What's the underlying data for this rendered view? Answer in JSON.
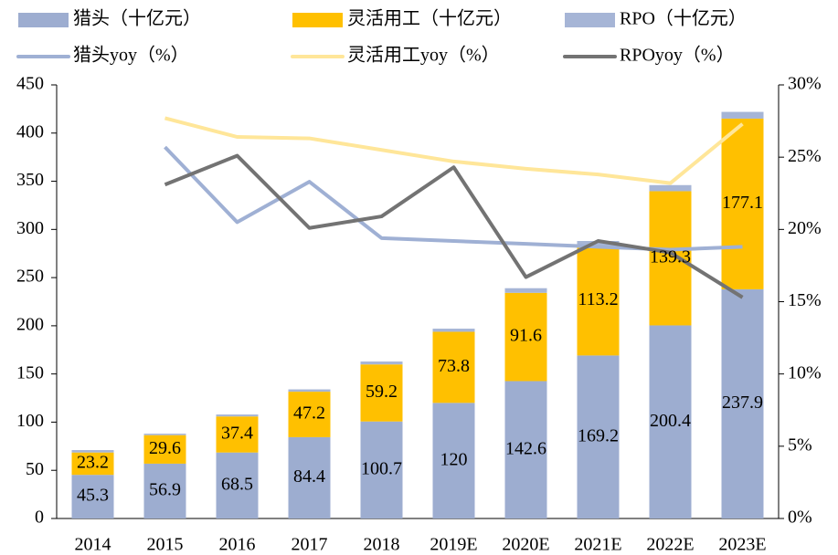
{
  "chart_data": {
    "type": "bar",
    "stacked": true,
    "categories": [
      "2014",
      "2015",
      "2016",
      "2017",
      "2018",
      "2019E",
      "2020E",
      "2021E",
      "2022E",
      "2023E"
    ],
    "series": [
      {
        "name": "猎头（十亿元）",
        "type": "bar",
        "color": "#9dadd0",
        "data_labels": true,
        "values": [
          45.3,
          56.9,
          68.5,
          84.4,
          100.7,
          120,
          142.6,
          169.2,
          200.4,
          237.9
        ]
      },
      {
        "name": "灵活用工（十亿元）",
        "type": "bar",
        "color": "#ffc000",
        "data_labels": true,
        "values": [
          23.2,
          29.6,
          37.4,
          47.2,
          59.2,
          73.8,
          91.6,
          113.2,
          139.3,
          177.1
        ]
      },
      {
        "name": "RPO（十亿元）",
        "type": "bar",
        "color": "#a6b5d6",
        "data_labels": false,
        "values": [
          2.5,
          1.5,
          2,
          2.4,
          3,
          3.2,
          4.8,
          5.6,
          6.3,
          7
        ]
      },
      {
        "name": "猎头yoy（%）",
        "type": "line",
        "axis": "y2",
        "color": "#9fb0d4",
        "values": [
          null,
          25.7,
          20.5,
          23.3,
          19.4,
          19.2,
          19.0,
          18.8,
          18.6,
          18.8
        ]
      },
      {
        "name": "灵活用工yoy（%）",
        "type": "line",
        "axis": "y2",
        "color": "#ffe699",
        "values": [
          null,
          27.7,
          26.4,
          26.3,
          25.5,
          24.7,
          24.2,
          23.8,
          23.2,
          27.3
        ]
      },
      {
        "name": "RPOyoy（%）",
        "type": "line",
        "axis": "y2",
        "color": "#737373",
        "values": [
          null,
          23.1,
          25.1,
          20.1,
          20.9,
          24.3,
          16.7,
          19.2,
          18.4,
          15.3
        ]
      }
    ],
    "ylim": [
      0,
      450
    ],
    "yticks": [
      0,
      50,
      100,
      150,
      200,
      250,
      300,
      350,
      400,
      450
    ],
    "y2lim": [
      0,
      30
    ],
    "y2ticks": [
      {
        "value": 0,
        "label": "0%"
      },
      {
        "value": 5,
        "label": "5%"
      },
      {
        "value": 10,
        "label": "10%"
      },
      {
        "value": 15,
        "label": "15%"
      },
      {
        "value": 20,
        "label": "20%"
      },
      {
        "value": 25,
        "label": "25%"
      },
      {
        "value": 30,
        "label": "30%"
      }
    ],
    "grid": false,
    "legend": "top"
  }
}
